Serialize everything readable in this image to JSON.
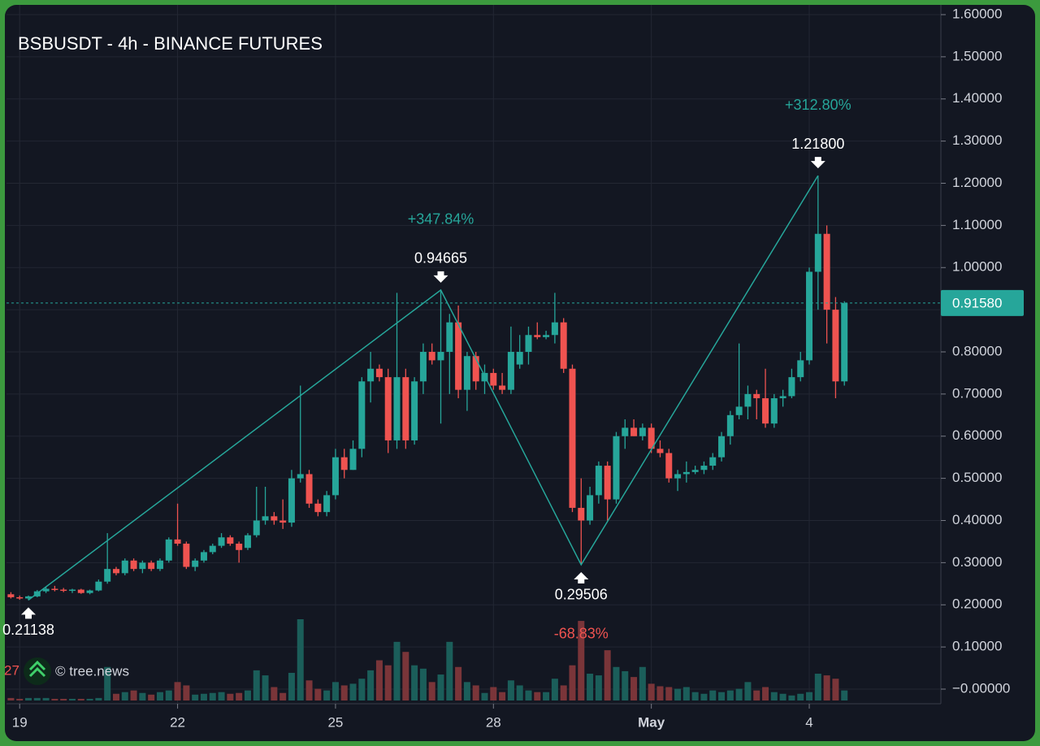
{
  "chart_data": {
    "type": "candlestick",
    "title": "BSBUSDT - 4h - BINANCE FUTURES",
    "up_color": "#26a69a",
    "down_color": "#ef5350",
    "grid": true,
    "xlim": [
      0,
      106.5
    ],
    "xticks": [
      {
        "value": 1.5,
        "label": "19"
      },
      {
        "value": 19.5,
        "label": "22"
      },
      {
        "value": 37.5,
        "label": "25"
      },
      {
        "value": 55.5,
        "label": "28"
      },
      {
        "value": 73.5,
        "label": "May",
        "bold": true
      },
      {
        "value": 91.5,
        "label": "4"
      }
    ],
    "ylim": [
      0,
      1.6
    ],
    "yticks": [
      {
        "value": 1.6,
        "label": "1.60000"
      },
      {
        "value": 1.5,
        "label": "1.50000"
      },
      {
        "value": 1.4,
        "label": "1.40000"
      },
      {
        "value": 1.3,
        "label": "1.30000"
      },
      {
        "value": 1.2,
        "label": "1.20000"
      },
      {
        "value": 1.1,
        "label": "1.10000"
      },
      {
        "value": 1.0,
        "label": "1.00000"
      },
      {
        "value": 0.9,
        "label": "0.90000"
      },
      {
        "value": 0.8,
        "label": "0.80000"
      },
      {
        "value": 0.7,
        "label": "0.70000"
      },
      {
        "value": 0.6,
        "label": "0.60000"
      },
      {
        "value": 0.5,
        "label": "0.50000"
      },
      {
        "value": 0.4,
        "label": "0.40000"
      },
      {
        "value": 0.3,
        "label": "0.30000"
      },
      {
        "value": 0.2,
        "label": "0.20000"
      },
      {
        "value": 0.1,
        "label": "0.10000"
      },
      {
        "value": 0,
        "label": "−0.00000"
      }
    ],
    "open": [
      0.225,
      0.218,
      0.215,
      0.22,
      0.232,
      0.238,
      0.236,
      0.234,
      0.236,
      0.228,
      0.234,
      0.255,
      0.285,
      0.275,
      0.305,
      0.285,
      0.3,
      0.285,
      0.305,
      0.355,
      0.345,
      0.29,
      0.305,
      0.325,
      0.34,
      0.36,
      0.345,
      0.335,
      0.365,
      0.4,
      0.41,
      0.4,
      0.395,
      0.5,
      0.51,
      0.44,
      0.42,
      0.46,
      0.55,
      0.52,
      0.57,
      0.73,
      0.76,
      0.74,
      0.59,
      0.74,
      0.59,
      0.73,
      0.8,
      0.78,
      0.8,
      0.87,
      0.71,
      0.79,
      0.73,
      0.75,
      0.72,
      0.71,
      0.77,
      0.8,
      0.84,
      0.835,
      0.84,
      0.87,
      0.76,
      0.43,
      0.4,
      0.46,
      0.53,
      0.45,
      0.6,
      0.62,
      0.6,
      0.62,
      0.57,
      0.56,
      0.5,
      0.51,
      0.515,
      0.52,
      0.53,
      0.55,
      0.6,
      0.65,
      0.67,
      0.7,
      0.69,
      0.63,
      0.69,
      0.695,
      0.74,
      0.78,
      0.99,
      1.08,
      0.9,
      0.73
    ],
    "high": [
      0.23,
      0.222,
      0.222,
      0.235,
      0.242,
      0.245,
      0.24,
      0.238,
      0.238,
      0.236,
      0.26,
      0.37,
      0.29,
      0.31,
      0.31,
      0.305,
      0.305,
      0.31,
      0.36,
      0.44,
      0.35,
      0.31,
      0.33,
      0.345,
      0.37,
      0.365,
      0.35,
      0.37,
      0.48,
      0.48,
      0.42,
      0.45,
      0.52,
      0.72,
      0.52,
      0.45,
      0.47,
      0.57,
      0.57,
      0.59,
      0.74,
      0.8,
      0.77,
      0.76,
      0.94,
      0.76,
      0.74,
      0.82,
      0.82,
      0.94665,
      0.89,
      0.91,
      0.8,
      0.8,
      0.77,
      0.76,
      0.75,
      0.86,
      0.84,
      0.86,
      0.87,
      0.85,
      0.94,
      0.88,
      0.77,
      0.5,
      0.48,
      0.54,
      0.54,
      0.61,
      0.64,
      0.64,
      0.63,
      0.63,
      0.59,
      0.57,
      0.52,
      0.54,
      0.53,
      0.54,
      0.56,
      0.61,
      0.66,
      0.82,
      0.72,
      0.71,
      0.76,
      0.7,
      0.71,
      0.76,
      0.8,
      1.0,
      1.218,
      1.1,
      0.93,
      0.92
    ],
    "low": [
      0.215,
      0.212,
      0.211,
      0.218,
      0.228,
      0.232,
      0.23,
      0.228,
      0.226,
      0.225,
      0.232,
      0.25,
      0.27,
      0.27,
      0.28,
      0.275,
      0.28,
      0.28,
      0.3,
      0.34,
      0.285,
      0.28,
      0.3,
      0.32,
      0.335,
      0.34,
      0.3,
      0.33,
      0.36,
      0.39,
      0.39,
      0.38,
      0.385,
      0.49,
      0.43,
      0.41,
      0.41,
      0.45,
      0.5,
      0.52,
      0.55,
      0.68,
      0.73,
      0.56,
      0.57,
      0.57,
      0.58,
      0.7,
      0.77,
      0.63,
      0.7,
      0.69,
      0.66,
      0.71,
      0.7,
      0.71,
      0.7,
      0.7,
      0.76,
      0.77,
      0.83,
      0.83,
      0.82,
      0.75,
      0.42,
      0.29506,
      0.39,
      0.44,
      0.4,
      0.44,
      0.57,
      0.6,
      0.59,
      0.56,
      0.55,
      0.49,
      0.47,
      0.49,
      0.51,
      0.51,
      0.52,
      0.54,
      0.58,
      0.64,
      0.64,
      0.64,
      0.62,
      0.62,
      0.67,
      0.69,
      0.73,
      0.77,
      0.9,
      0.82,
      0.69,
      0.72
    ],
    "close": [
      0.218,
      0.215,
      0.22,
      0.232,
      0.238,
      0.236,
      0.234,
      0.236,
      0.228,
      0.234,
      0.255,
      0.285,
      0.275,
      0.305,
      0.285,
      0.3,
      0.285,
      0.305,
      0.355,
      0.345,
      0.29,
      0.305,
      0.325,
      0.34,
      0.36,
      0.345,
      0.33,
      0.365,
      0.4,
      0.41,
      0.4,
      0.395,
      0.5,
      0.51,
      0.44,
      0.42,
      0.46,
      0.55,
      0.52,
      0.57,
      0.73,
      0.76,
      0.74,
      0.59,
      0.74,
      0.59,
      0.73,
      0.8,
      0.78,
      0.8,
      0.87,
      0.71,
      0.79,
      0.73,
      0.75,
      0.72,
      0.71,
      0.8,
      0.8,
      0.84,
      0.835,
      0.84,
      0.87,
      0.76,
      0.43,
      0.4,
      0.46,
      0.53,
      0.45,
      0.6,
      0.62,
      0.6,
      0.62,
      0.57,
      0.56,
      0.5,
      0.51,
      0.515,
      0.52,
      0.53,
      0.55,
      0.6,
      0.65,
      0.67,
      0.7,
      0.69,
      0.63,
      0.69,
      0.695,
      0.74,
      0.78,
      0.99,
      1.08,
      0.9,
      0.73,
      0.9158
    ],
    "volume": [
      3,
      2,
      3,
      3,
      3,
      2,
      2,
      2,
      2,
      2,
      3,
      40,
      8,
      10,
      12,
      9,
      7,
      10,
      12,
      22,
      18,
      7,
      8,
      9,
      10,
      8,
      9,
      12,
      36,
      30,
      16,
      9,
      33,
      97,
      24,
      14,
      12,
      22,
      18,
      20,
      26,
      36,
      48,
      42,
      70,
      58,
      42,
      38,
      22,
      31,
      70,
      40,
      22,
      18,
      9,
      16,
      10,
      24,
      18,
      12,
      10,
      10,
      26,
      18,
      42,
      95,
      32,
      30,
      60,
      40,
      35,
      28,
      40,
      20,
      17,
      16,
      14,
      16,
      10,
      8,
      12,
      10,
      12,
      14,
      22,
      12,
      16,
      10,
      8,
      6,
      8,
      10,
      32,
      30,
      26,
      12
    ],
    "volume_color": {
      "up": "#1b5e5a",
      "down": "#7a3539"
    },
    "current_price": {
      "value": 0.9158,
      "label": "0.91580"
    },
    "pivots": [
      {
        "index": 2,
        "price": 0.21138,
        "side": "low"
      },
      {
        "index": 49,
        "price": 0.94665,
        "side": "high",
        "change": "+347.84%",
        "change_color": "#26a69a"
      },
      {
        "index": 65,
        "price": 0.29506,
        "side": "low",
        "change": "-68.83%",
        "change_color": "#ef5350"
      },
      {
        "index": 92,
        "price": 1.218,
        "price_label": "1.21800",
        "side": "high",
        "change": "+312.80%",
        "change_color": "#26a69a"
      }
    ],
    "volume_label": "27",
    "watermark": "© tree.news"
  }
}
